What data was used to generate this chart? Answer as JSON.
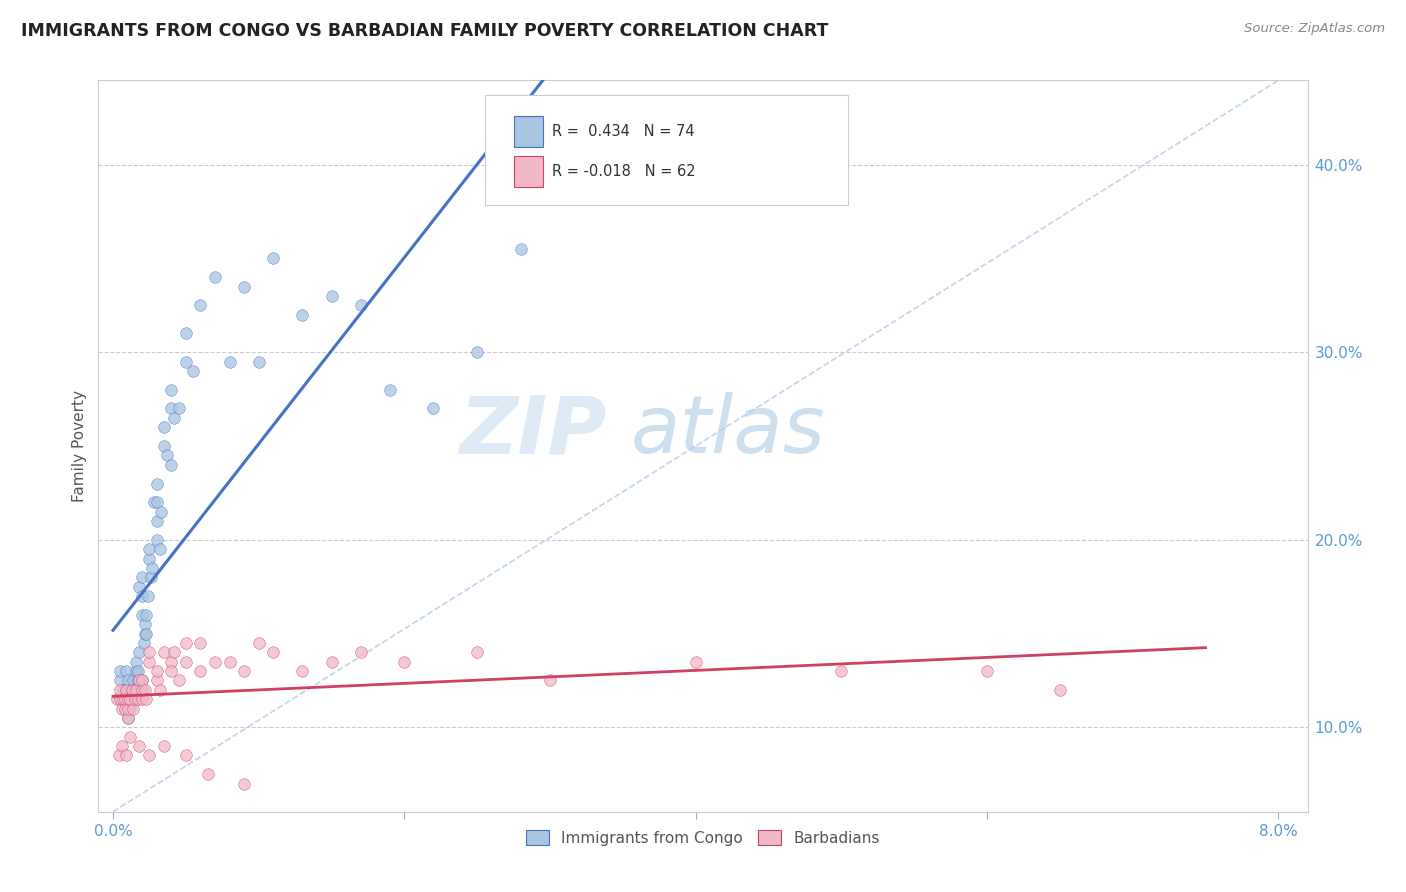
{
  "title": "IMMIGRANTS FROM CONGO VS BARBADIAN FAMILY POVERTY CORRELATION CHART",
  "source": "Source: ZipAtlas.com",
  "ylabel": "Family Poverty",
  "y_ticks": [
    0.1,
    0.2,
    0.3,
    0.4
  ],
  "y_tick_labels": [
    "10.0%",
    "20.0%",
    "30.0%",
    "40.0%"
  ],
  "xlim": [
    0.0,
    0.08
  ],
  "ylim": [
    0.055,
    0.445
  ],
  "color_blue": "#a8c4e0",
  "color_pink": "#f0b8c8",
  "line_blue": "#4472c4",
  "line_pink": "#d04060",
  "line_diag": "#b8d0e8",
  "watermark_zip": "ZIP",
  "watermark_atlas": "atlas",
  "congo_x": [
    0.0005,
    0.0005,
    0.0005,
    0.0007,
    0.0007,
    0.0008,
    0.0008,
    0.0009,
    0.0009,
    0.001,
    0.001,
    0.001,
    0.001,
    0.001,
    0.0012,
    0.0012,
    0.0013,
    0.0013,
    0.0014,
    0.0014,
    0.0015,
    0.0015,
    0.0016,
    0.0016,
    0.0017,
    0.0017,
    0.0018,
    0.0018,
    0.0019,
    0.002,
    0.002,
    0.002,
    0.002,
    0.0021,
    0.0022,
    0.0022,
    0.0023,
    0.0023,
    0.0024,
    0.0025,
    0.0025,
    0.0026,
    0.0027,
    0.0028,
    0.003,
    0.003,
    0.003,
    0.003,
    0.0032,
    0.0033,
    0.0035,
    0.0035,
    0.0037,
    0.004,
    0.004,
    0.004,
    0.0042,
    0.0045,
    0.005,
    0.005,
    0.0055,
    0.006,
    0.007,
    0.008,
    0.009,
    0.01,
    0.011,
    0.013,
    0.015,
    0.017,
    0.019,
    0.022,
    0.025,
    0.028
  ],
  "congo_y": [
    0.125,
    0.13,
    0.115,
    0.115,
    0.12,
    0.11,
    0.115,
    0.12,
    0.13,
    0.105,
    0.11,
    0.115,
    0.12,
    0.125,
    0.11,
    0.115,
    0.115,
    0.12,
    0.12,
    0.125,
    0.115,
    0.12,
    0.13,
    0.135,
    0.125,
    0.13,
    0.175,
    0.14,
    0.12,
    0.16,
    0.17,
    0.18,
    0.125,
    0.145,
    0.15,
    0.155,
    0.15,
    0.16,
    0.17,
    0.19,
    0.195,
    0.18,
    0.185,
    0.22,
    0.2,
    0.21,
    0.22,
    0.23,
    0.195,
    0.215,
    0.25,
    0.26,
    0.245,
    0.24,
    0.27,
    0.28,
    0.265,
    0.27,
    0.295,
    0.31,
    0.29,
    0.325,
    0.34,
    0.295,
    0.335,
    0.295,
    0.35,
    0.32,
    0.33,
    0.325,
    0.28,
    0.27,
    0.3,
    0.355
  ],
  "barbadian_x": [
    0.0003,
    0.0005,
    0.0005,
    0.0006,
    0.0007,
    0.0008,
    0.0008,
    0.0009,
    0.001,
    0.001,
    0.001,
    0.0012,
    0.0013,
    0.0014,
    0.0015,
    0.0016,
    0.0017,
    0.0018,
    0.002,
    0.002,
    0.002,
    0.0022,
    0.0023,
    0.0025,
    0.0025,
    0.003,
    0.003,
    0.0032,
    0.0035,
    0.004,
    0.004,
    0.0042,
    0.0045,
    0.005,
    0.005,
    0.006,
    0.006,
    0.007,
    0.008,
    0.009,
    0.01,
    0.011,
    0.013,
    0.015,
    0.017,
    0.02,
    0.025,
    0.03,
    0.04,
    0.05,
    0.06,
    0.065,
    0.0004,
    0.0006,
    0.0009,
    0.0012,
    0.0018,
    0.0025,
    0.0035,
    0.005,
    0.0065,
    0.009
  ],
  "barbadian_y": [
    0.115,
    0.115,
    0.12,
    0.11,
    0.115,
    0.11,
    0.115,
    0.12,
    0.105,
    0.11,
    0.115,
    0.115,
    0.12,
    0.11,
    0.115,
    0.12,
    0.115,
    0.125,
    0.115,
    0.12,
    0.125,
    0.12,
    0.115,
    0.135,
    0.14,
    0.125,
    0.13,
    0.12,
    0.14,
    0.135,
    0.13,
    0.14,
    0.125,
    0.145,
    0.135,
    0.13,
    0.145,
    0.135,
    0.135,
    0.13,
    0.145,
    0.14,
    0.13,
    0.135,
    0.14,
    0.135,
    0.14,
    0.125,
    0.135,
    0.13,
    0.13,
    0.12,
    0.085,
    0.09,
    0.085,
    0.095,
    0.09,
    0.085,
    0.09,
    0.085,
    0.075,
    0.07
  ]
}
